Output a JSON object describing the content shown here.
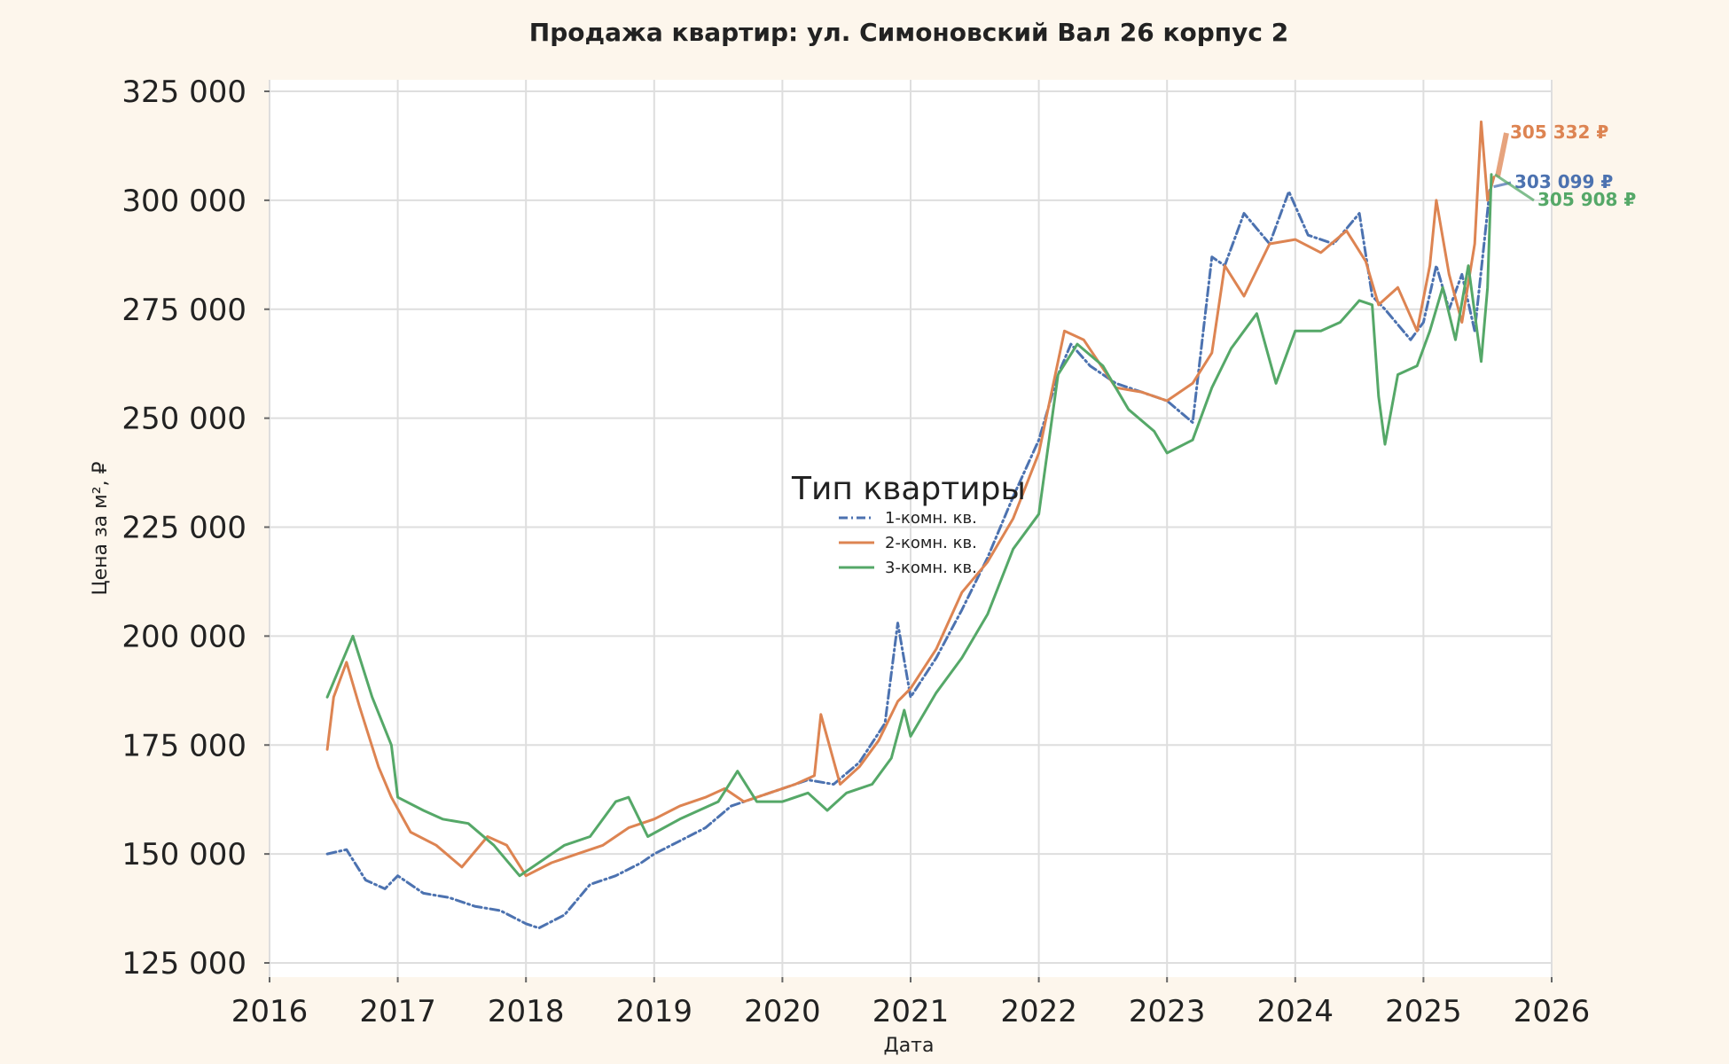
{
  "chart_data": {
    "type": "line",
    "title": "Продажа квартир: ул. Симоновский Вал 26 корпус 2",
    "xlabel": "Дата",
    "ylabel": "Цена за м², ₽",
    "xlim": [
      2016,
      2026
    ],
    "ylim": [
      123000,
      326000
    ],
    "x_ticks": [
      "2016",
      "2017",
      "2018",
      "2019",
      "2020",
      "2021",
      "2022",
      "2023",
      "2024",
      "2025",
      "2026"
    ],
    "y_ticks": [
      "125 000",
      "150 000",
      "175 000",
      "200 000",
      "225 000",
      "250 000",
      "275 000",
      "300 000",
      "325 000"
    ],
    "y_tick_values": [
      125000,
      150000,
      175000,
      200000,
      225000,
      250000,
      275000,
      300000,
      325000
    ],
    "grid": true,
    "legend": {
      "title": "Тип квартиры",
      "placement": "center",
      "entries": [
        "1-комн. кв.",
        "2-комн. кв.",
        "3-комн. кв."
      ]
    },
    "colors": {
      "background": "#fdf6ec",
      "plot_bg": "#ffffff"
    },
    "series": [
      {
        "name": "1-комн. кв.",
        "color": "#4c72b0",
        "dash": "dashdot",
        "end_label": "303 099 ₽",
        "x": [
          2016.45,
          2016.6,
          2016.75,
          2016.9,
          2017.0,
          2017.2,
          2017.4,
          2017.6,
          2017.8,
          2018.0,
          2018.1,
          2018.3,
          2018.5,
          2018.7,
          2018.9,
          2019.0,
          2019.2,
          2019.4,
          2019.6,
          2019.8,
          2020.0,
          2020.2,
          2020.4,
          2020.6,
          2020.8,
          2020.9,
          2021.0,
          2021.2,
          2021.4,
          2021.6,
          2021.8,
          2022.0,
          2022.15,
          2022.25,
          2022.4,
          2022.6,
          2022.8,
          2023.0,
          2023.2,
          2023.35,
          2023.45,
          2023.6,
          2023.8,
          2023.95,
          2024.1,
          2024.3,
          2024.5,
          2024.6,
          2024.7,
          2024.9,
          2025.0,
          2025.1,
          2025.2,
          2025.3,
          2025.4,
          2025.48,
          2025.52
        ],
        "y": [
          150000,
          151000,
          144000,
          142000,
          145000,
          141000,
          140000,
          138000,
          137000,
          134000,
          133000,
          136000,
          143000,
          145000,
          148000,
          150000,
          153000,
          156000,
          161000,
          163000,
          165000,
          167000,
          166000,
          171000,
          180000,
          203000,
          186000,
          195000,
          206000,
          218000,
          232000,
          245000,
          260000,
          267000,
          262000,
          258000,
          256000,
          254000,
          249000,
          287000,
          285000,
          297000,
          290000,
          302000,
          292000,
          290000,
          297000,
          278000,
          275000,
          268000,
          272000,
          285000,
          275000,
          283000,
          270000,
          292000,
          303099
        ]
      },
      {
        "name": "2-комн. кв.",
        "color": "#dd8452",
        "dash": "solid",
        "end_label": "305 332 ₽",
        "x": [
          2016.45,
          2016.5,
          2016.6,
          2016.7,
          2016.85,
          2016.95,
          2017.1,
          2017.3,
          2017.5,
          2017.7,
          2017.85,
          2018.0,
          2018.2,
          2018.4,
          2018.6,
          2018.8,
          2019.0,
          2019.2,
          2019.4,
          2019.55,
          2019.7,
          2019.9,
          2020.1,
          2020.25,
          2020.3,
          2020.45,
          2020.6,
          2020.75,
          2020.9,
          2021.0,
          2021.2,
          2021.4,
          2021.6,
          2021.8,
          2022.0,
          2022.2,
          2022.35,
          2022.6,
          2022.8,
          2023.0,
          2023.2,
          2023.35,
          2023.45,
          2023.6,
          2023.8,
          2024.0,
          2024.2,
          2024.4,
          2024.55,
          2024.65,
          2024.8,
          2024.95,
          2025.05,
          2025.1,
          2025.2,
          2025.3,
          2025.4,
          2025.45,
          2025.5,
          2025.55
        ],
        "y": [
          174000,
          186000,
          194000,
          184000,
          170000,
          163000,
          155000,
          152000,
          147000,
          154000,
          152000,
          145000,
          148000,
          150000,
          152000,
          156000,
          158000,
          161000,
          163000,
          165000,
          162000,
          164000,
          166000,
          168000,
          182000,
          166000,
          170000,
          176000,
          185000,
          188000,
          197000,
          210000,
          217000,
          227000,
          242000,
          270000,
          268000,
          257000,
          256000,
          254000,
          258000,
          265000,
          285000,
          278000,
          290000,
          291000,
          288000,
          293000,
          286000,
          276000,
          280000,
          270000,
          285000,
          300000,
          283000,
          272000,
          290000,
          318000,
          300000,
          305332
        ]
      },
      {
        "name": "3-комн. кв.",
        "color": "#55a868",
        "dash": "solid",
        "end_label": "305 908 ₽",
        "x": [
          2016.45,
          2016.55,
          2016.65,
          2016.8,
          2016.95,
          2017.0,
          2017.2,
          2017.35,
          2017.55,
          2017.75,
          2017.95,
          2018.1,
          2018.3,
          2018.5,
          2018.7,
          2018.8,
          2018.95,
          2019.2,
          2019.5,
          2019.65,
          2019.8,
          2020.0,
          2020.2,
          2020.35,
          2020.5,
          2020.7,
          2020.85,
          2020.95,
          2021.0,
          2021.2,
          2021.4,
          2021.6,
          2021.8,
          2022.0,
          2022.15,
          2022.3,
          2022.5,
          2022.7,
          2022.9,
          2023.0,
          2023.2,
          2023.35,
          2023.5,
          2023.7,
          2023.85,
          2024.0,
          2024.2,
          2024.35,
          2024.5,
          2024.6,
          2024.65,
          2024.7,
          2024.8,
          2024.95,
          2025.05,
          2025.15,
          2025.25,
          2025.35,
          2025.45,
          2025.5,
          2025.53
        ],
        "y": [
          186000,
          193000,
          200000,
          186000,
          175000,
          163000,
          160000,
          158000,
          157000,
          152000,
          145000,
          148000,
          152000,
          154000,
          162000,
          163000,
          154000,
          158000,
          162000,
          169000,
          162000,
          162000,
          164000,
          160000,
          164000,
          166000,
          172000,
          183000,
          177000,
          187000,
          195000,
          205000,
          220000,
          228000,
          260000,
          267000,
          262000,
          252000,
          247000,
          242000,
          245000,
          257000,
          266000,
          274000,
          258000,
          270000,
          270000,
          272000,
          277000,
          276000,
          255000,
          244000,
          260000,
          262000,
          270000,
          280000,
          268000,
          285000,
          263000,
          280000,
          305908
        ]
      }
    ]
  }
}
